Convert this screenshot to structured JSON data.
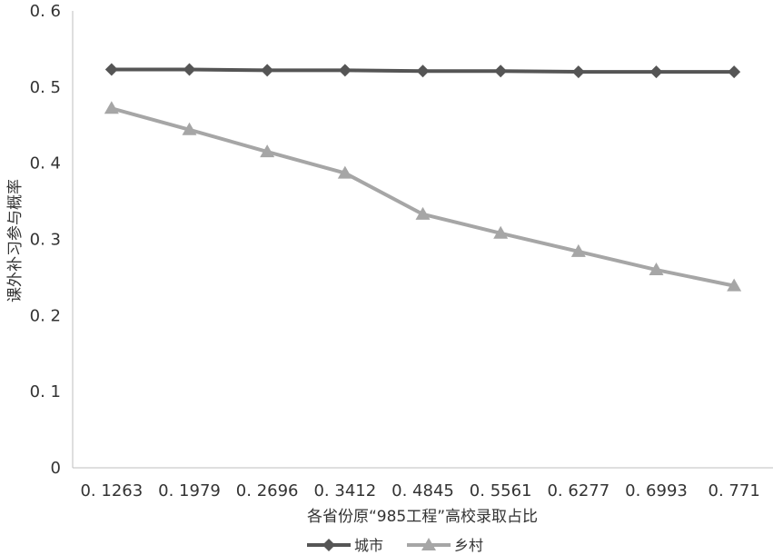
{
  "chart_data": {
    "type": "line",
    "categories": [
      "0. 1263",
      "0. 1979",
      "0. 2696",
      "0. 3412",
      "0. 4845",
      "0. 5561",
      "0. 6277",
      "0. 6993",
      "0. 771"
    ],
    "series": [
      {
        "name": "城市",
        "values": [
          0.523,
          0.523,
          0.522,
          0.522,
          0.521,
          0.521,
          0.52,
          0.52,
          0.52
        ],
        "marker": "diamond",
        "color": "#555555"
      },
      {
        "name": "乡村",
        "values": [
          0.472,
          0.444,
          0.415,
          0.387,
          0.333,
          0.308,
          0.284,
          0.26,
          0.239
        ],
        "marker": "triangle",
        "color": "#a6a6a6"
      }
    ],
    "yticks": [
      "0",
      "0. 1",
      "0. 2",
      "0. 3",
      "0. 4",
      "0. 5",
      "0. 6"
    ],
    "ylim": [
      0,
      0.6
    ],
    "xlabel": "各省份原“985工程”高校录取占比",
    "ylabel": "课外补习参与概率",
    "grid": false,
    "legend_position": "bottom"
  }
}
